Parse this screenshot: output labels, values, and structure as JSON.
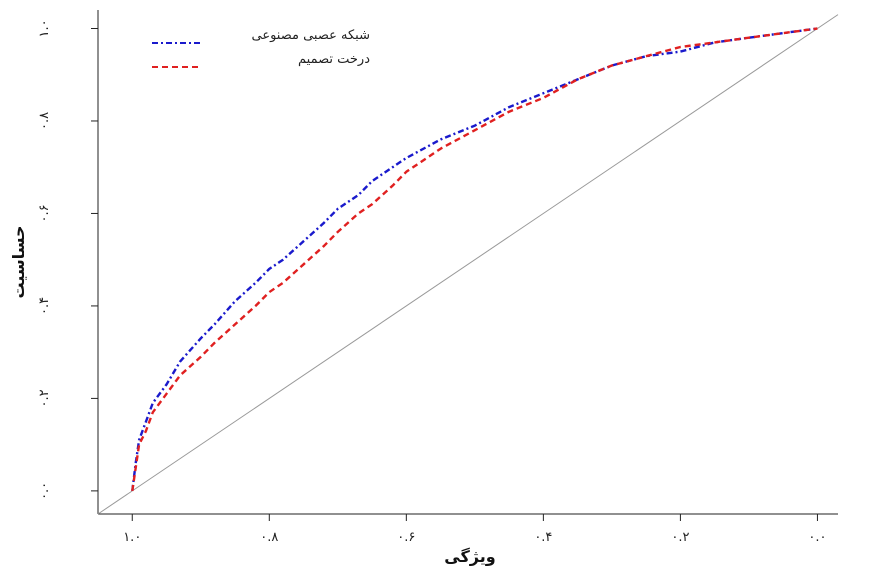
{
  "chart_data": {
    "type": "line",
    "xlabel": "ویژگی",
    "ylabel": "حساسیت",
    "x_reversed": true,
    "xlim": [
      1.05,
      -0.03
    ],
    "ylim": [
      -0.05,
      1.04
    ],
    "x_ticks": [
      1.0,
      0.8,
      0.6,
      0.4,
      0.2,
      0.0
    ],
    "x_tick_labels": [
      "۱.۰",
      "۰.۸",
      "۰.۶",
      "۰.۴",
      "۰.۲",
      "۰.۰"
    ],
    "y_ticks": [
      0.0,
      0.2,
      0.4,
      0.6,
      0.8,
      1.0
    ],
    "y_tick_labels": [
      "۰.۰",
      "۰.۲",
      "۰.۴",
      "۰.۶",
      "۰.۸",
      "۱.۰"
    ],
    "grid": false,
    "legend_position": "top-left",
    "reference_line": {
      "x": [
        1.05,
        -0.03
      ],
      "y": [
        -0.05,
        1.03
      ],
      "color": "#999999"
    },
    "series": [
      {
        "name": "شبکه عصبی مصنوعی",
        "color": "#1a1acc",
        "style": "dashdot",
        "x": [
          1.0,
          0.995,
          0.99,
          0.98,
          0.97,
          0.95,
          0.93,
          0.9,
          0.88,
          0.85,
          0.82,
          0.8,
          0.78,
          0.75,
          0.72,
          0.7,
          0.67,
          0.65,
          0.62,
          0.6,
          0.55,
          0.5,
          0.45,
          0.4,
          0.35,
          0.3,
          0.25,
          0.2,
          0.15,
          0.1,
          0.05,
          0.0
        ],
        "y": [
          0.0,
          0.06,
          0.11,
          0.15,
          0.19,
          0.23,
          0.28,
          0.33,
          0.36,
          0.41,
          0.45,
          0.48,
          0.5,
          0.54,
          0.58,
          0.61,
          0.64,
          0.67,
          0.7,
          0.72,
          0.76,
          0.79,
          0.83,
          0.86,
          0.89,
          0.92,
          0.94,
          0.95,
          0.97,
          0.98,
          0.99,
          1.0
        ]
      },
      {
        "name": "درخت تصمیم",
        "color": "#e02020",
        "style": "dashed",
        "x": [
          1.0,
          0.995,
          0.99,
          0.98,
          0.97,
          0.95,
          0.93,
          0.9,
          0.88,
          0.85,
          0.82,
          0.8,
          0.78,
          0.75,
          0.72,
          0.7,
          0.67,
          0.65,
          0.62,
          0.6,
          0.55,
          0.5,
          0.45,
          0.4,
          0.35,
          0.3,
          0.25,
          0.2,
          0.15,
          0.1,
          0.05,
          0.0
        ],
        "y": [
          0.0,
          0.05,
          0.1,
          0.13,
          0.17,
          0.21,
          0.25,
          0.29,
          0.32,
          0.36,
          0.4,
          0.43,
          0.45,
          0.49,
          0.53,
          0.56,
          0.6,
          0.62,
          0.66,
          0.69,
          0.74,
          0.78,
          0.82,
          0.85,
          0.89,
          0.92,
          0.94,
          0.96,
          0.97,
          0.98,
          0.99,
          1.0
        ]
      }
    ]
  }
}
